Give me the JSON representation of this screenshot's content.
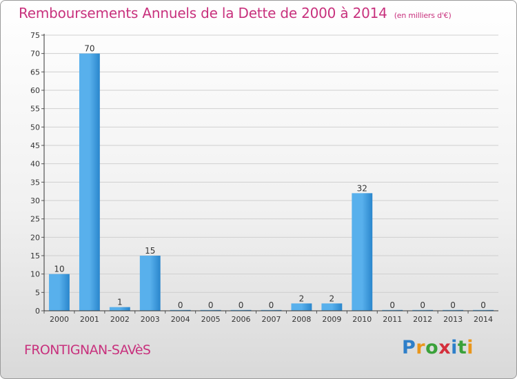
{
  "title": "Remboursements Annuels de la Dette de 2000 à 2014",
  "unit_note": "(en milliers d'€)",
  "commune": "FRONTIGNAN-SAVèS",
  "logo": {
    "letters": [
      {
        "ch": "P",
        "color": "#2e7fc9"
      },
      {
        "ch": "r",
        "color": "#e9961b"
      },
      {
        "ch": "o",
        "color": "#3aa13a"
      },
      {
        "ch": "x",
        "color": "#d42f3c"
      },
      {
        "ch": "i",
        "color": "#2e7fc9"
      },
      {
        "ch": "t",
        "color": "#3aa13a"
      },
      {
        "ch": "i",
        "color": "#e9961b"
      }
    ]
  },
  "colors": {
    "bar": "#2a86cc",
    "bar_light": "#58b0ec",
    "accent": "#c8317d"
  },
  "chart_data": {
    "type": "bar",
    "categories": [
      "2000",
      "2001",
      "2002",
      "2003",
      "2004",
      "2005",
      "2006",
      "2007",
      "2008",
      "2009",
      "2010",
      "2011",
      "2012",
      "2013",
      "2014"
    ],
    "values": [
      10,
      70,
      1,
      15,
      0,
      0,
      0,
      0,
      2,
      2,
      32,
      0,
      0,
      0,
      0
    ],
    "data_labels": [
      "10",
      "70",
      "1",
      "15",
      "0",
      "0",
      "0",
      "0",
      "2",
      "2",
      "32",
      "0",
      "0",
      "0",
      "0"
    ],
    "ylim": [
      0,
      75
    ],
    "yticks": [
      0,
      5,
      10,
      15,
      20,
      25,
      30,
      35,
      40,
      45,
      50,
      55,
      60,
      65,
      70,
      75
    ],
    "grid": true
  }
}
